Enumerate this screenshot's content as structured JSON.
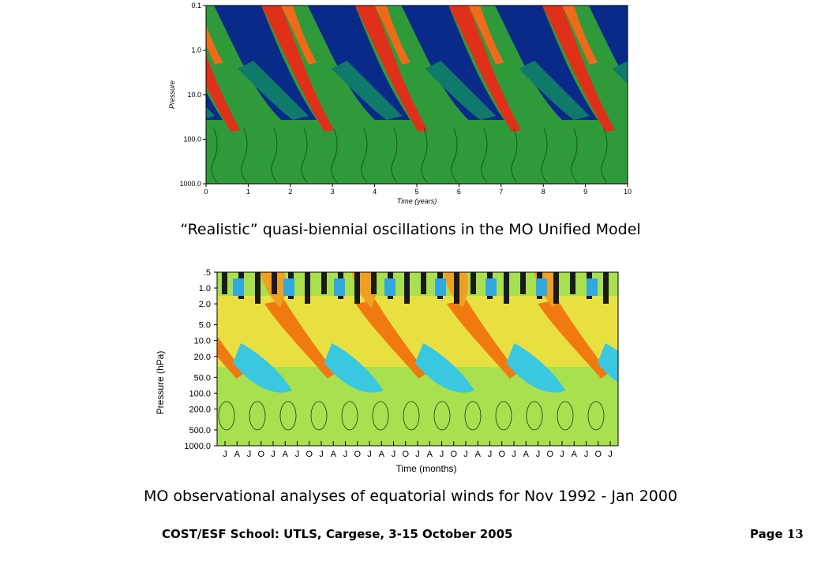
{
  "chart_data": [
    {
      "type": "heatmap",
      "xlabel": "Time (years)",
      "ylabel": "Pressure",
      "x_ticks": [
        "0",
        "1",
        "2",
        "3",
        "4",
        "5",
        "6",
        "7",
        "8",
        "9",
        "10"
      ],
      "y_ticks": [
        "0.1",
        "1.0",
        "10.0",
        "100.0",
        "1000.0"
      ],
      "y_scale": "log",
      "xlim": [
        0,
        10
      ],
      "ylim": [
        1000,
        0.1
      ],
      "colors": {
        "easterly": "#0a2a8a",
        "westerly": "#e0301a",
        "neutral": "#2f9a3a",
        "mid": "#0f7a6a"
      }
    },
    {
      "type": "heatmap",
      "xlabel": "Time (months)",
      "ylabel": "Pressure (hPa)",
      "x_ticks": [
        "J",
        "A",
        "J",
        "O",
        "J",
        "A",
        "J",
        "O",
        "J",
        "A",
        "J",
        "O",
        "J",
        "A",
        "J",
        "O",
        "J",
        "A",
        "J",
        "O",
        "J",
        "A",
        "J",
        "O",
        "J",
        "A",
        "J",
        "O",
        "J",
        "A",
        "J",
        "O",
        "J"
      ],
      "y_ticks": [
        ".5",
        "1.0",
        "2.0",
        "5.0",
        "10.0",
        "20.0",
        "50.0",
        "100.0",
        "200.0",
        "500.0",
        "1000.0"
      ],
      "y_scale": "log",
      "ylim": [
        1000,
        0.5
      ],
      "colors": {
        "easterly": "#3ac8e0",
        "westerly": "#f07a10",
        "neutral": "#a8e050",
        "strong": "#1a1a1a"
      }
    }
  ],
  "captions": {
    "top": "“Realistic” quasi-biennial oscillations in the MO Unified Model",
    "bottom": "MO observational analyses of equatorial winds for Nov 1992 - Jan 2000"
  },
  "footer": {
    "left": "COST/ESF School: UTLS, Cargese, 3-15 October 2005",
    "page_label": "Page",
    "page_number": "13"
  }
}
